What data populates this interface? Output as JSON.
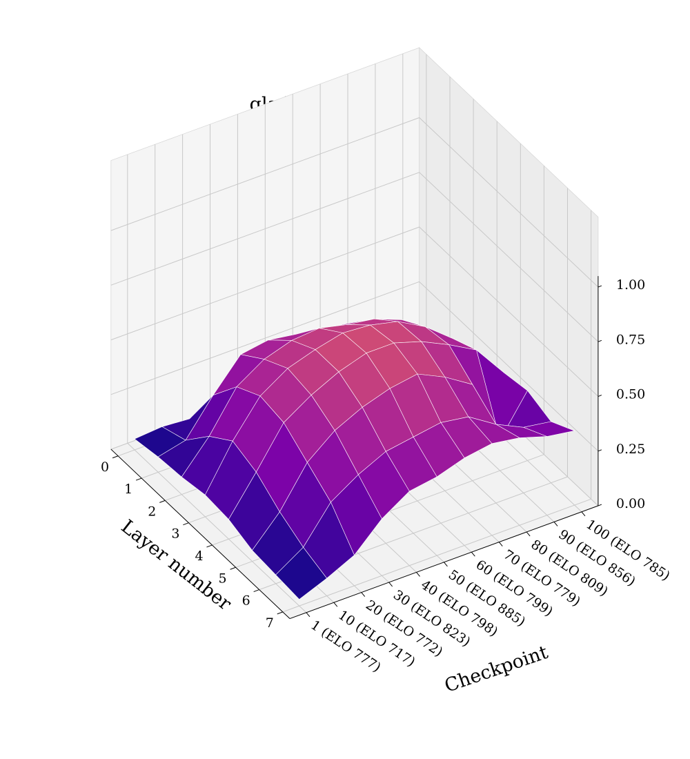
{
  "chart_data": {
    "type": "surface3d",
    "title": "gladiator-rn: in_check",
    "xlabel": "Layer number",
    "ylabel": "Checkpoint",
    "zlim": [
      0,
      1
    ],
    "colormap": "plasma",
    "grid": true,
    "layers": [
      0,
      1,
      2,
      3,
      4,
      5,
      6,
      7
    ],
    "checkpoints": [
      "1 (ELO 777)",
      "10 (ELO 717)",
      "20 (ELO 772)",
      "30 (ELO 823)",
      "40 (ELO 798)",
      "50 (ELO 885)",
      "60 (ELO 799)",
      "70 (ELO 779)",
      "80 (ELO 809)",
      "90 (ELO 856)",
      "100 (ELO 785)"
    ],
    "z_ticks": [
      "0.00",
      "0.25",
      "0.50",
      "0.75",
      "1.00"
    ],
    "z_values": [
      [
        0.05,
        0.06,
        0.05,
        0.08,
        0.1,
        0.08,
        0.06,
        0.05,
        0.05,
        0.06,
        0.05
      ],
      [
        0.07,
        0.1,
        0.26,
        0.4,
        0.42,
        0.4,
        0.38,
        0.36,
        0.3,
        0.22,
        0.15
      ],
      [
        0.08,
        0.22,
        0.4,
        0.48,
        0.52,
        0.53,
        0.5,
        0.48,
        0.43,
        0.34,
        0.22
      ],
      [
        0.1,
        0.3,
        0.46,
        0.54,
        0.58,
        0.61,
        0.6,
        0.57,
        0.5,
        0.4,
        0.28
      ],
      [
        0.09,
        0.26,
        0.44,
        0.52,
        0.58,
        0.62,
        0.62,
        0.58,
        0.52,
        0.45,
        0.3
      ],
      [
        0.05,
        0.18,
        0.36,
        0.46,
        0.52,
        0.56,
        0.58,
        0.52,
        0.44,
        0.14,
        0.32
      ],
      [
        0.04,
        0.12,
        0.28,
        0.36,
        0.42,
        0.44,
        0.46,
        0.44,
        0.36,
        0.3,
        0.28
      ],
      [
        0.03,
        0.08,
        0.14,
        0.26,
        0.34,
        0.36,
        0.4,
        0.42,
        0.4,
        0.36,
        0.34
      ]
    ]
  }
}
